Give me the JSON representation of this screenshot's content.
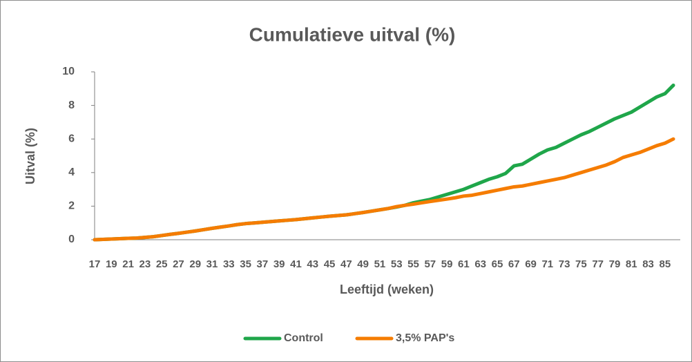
{
  "chart_data": {
    "type": "line",
    "title": "Cumulatieve uitval (%)",
    "x_label": "Leeftijd (weken)",
    "y_label": "Uitval (%)",
    "categories": [
      "17",
      null,
      "19",
      null,
      "21",
      null,
      "23",
      null,
      "25",
      null,
      "27",
      null,
      "29",
      null,
      "31",
      null,
      "33",
      null,
      "35",
      null,
      "37",
      null,
      "39",
      null,
      "41",
      null,
      "43",
      null,
      "45",
      null,
      "47",
      null,
      "49",
      null,
      "51",
      null,
      "53",
      null,
      "55",
      null,
      "57",
      null,
      "59",
      null,
      "61",
      null,
      "63",
      null,
      "65",
      null,
      "67",
      null,
      "69",
      null,
      "71",
      null,
      "73",
      null,
      "75",
      null,
      "77",
      null,
      "79",
      null,
      "81",
      null,
      "83",
      null,
      "85",
      null
    ],
    "series": [
      {
        "name": "Control",
        "color": "#1fa64a",
        "values": [
          0,
          0.02,
          0.04,
          0.06,
          0.08,
          0.1,
          0.14,
          0.18,
          0.25,
          0.32,
          0.38,
          0.45,
          0.52,
          0.6,
          0.68,
          0.75,
          0.82,
          0.9,
          0.96,
          1.0,
          1.04,
          1.08,
          1.12,
          1.16,
          1.2,
          1.25,
          1.3,
          1.35,
          1.4,
          1.44,
          1.48,
          1.55,
          1.62,
          1.7,
          1.78,
          1.86,
          1.95,
          2.05,
          2.2,
          2.3,
          2.4,
          2.55,
          2.7,
          2.85,
          3.0,
          3.2,
          3.4,
          3.6,
          3.75,
          3.95,
          4.4,
          4.5,
          4.8,
          5.1,
          5.35,
          5.5,
          5.75,
          6.0,
          6.25,
          6.45,
          6.7,
          6.95,
          7.2,
          7.4,
          7.6,
          7.9,
          8.2,
          8.5,
          8.7,
          9.2
        ]
      },
      {
        "name": "3,5% PAP's",
        "color": "#f57c00",
        "values": [
          0,
          0.02,
          0.04,
          0.06,
          0.08,
          0.1,
          0.14,
          0.18,
          0.25,
          0.32,
          0.38,
          0.45,
          0.52,
          0.6,
          0.68,
          0.75,
          0.82,
          0.9,
          0.96,
          1.0,
          1.04,
          1.08,
          1.12,
          1.16,
          1.2,
          1.25,
          1.3,
          1.35,
          1.4,
          1.44,
          1.48,
          1.55,
          1.62,
          1.7,
          1.78,
          1.86,
          1.97,
          2.05,
          2.12,
          2.2,
          2.28,
          2.35,
          2.42,
          2.5,
          2.6,
          2.65,
          2.75,
          2.85,
          2.95,
          3.05,
          3.15,
          3.2,
          3.3,
          3.4,
          3.5,
          3.6,
          3.7,
          3.85,
          4.0,
          4.15,
          4.3,
          4.45,
          4.65,
          4.9,
          5.05,
          5.2,
          5.4,
          5.6,
          5.75,
          6.0
        ]
      }
    ],
    "ylim": [
      0,
      10
    ],
    "yticks": [
      0,
      2,
      4,
      6,
      8,
      10
    ],
    "legend": "bottom"
  }
}
